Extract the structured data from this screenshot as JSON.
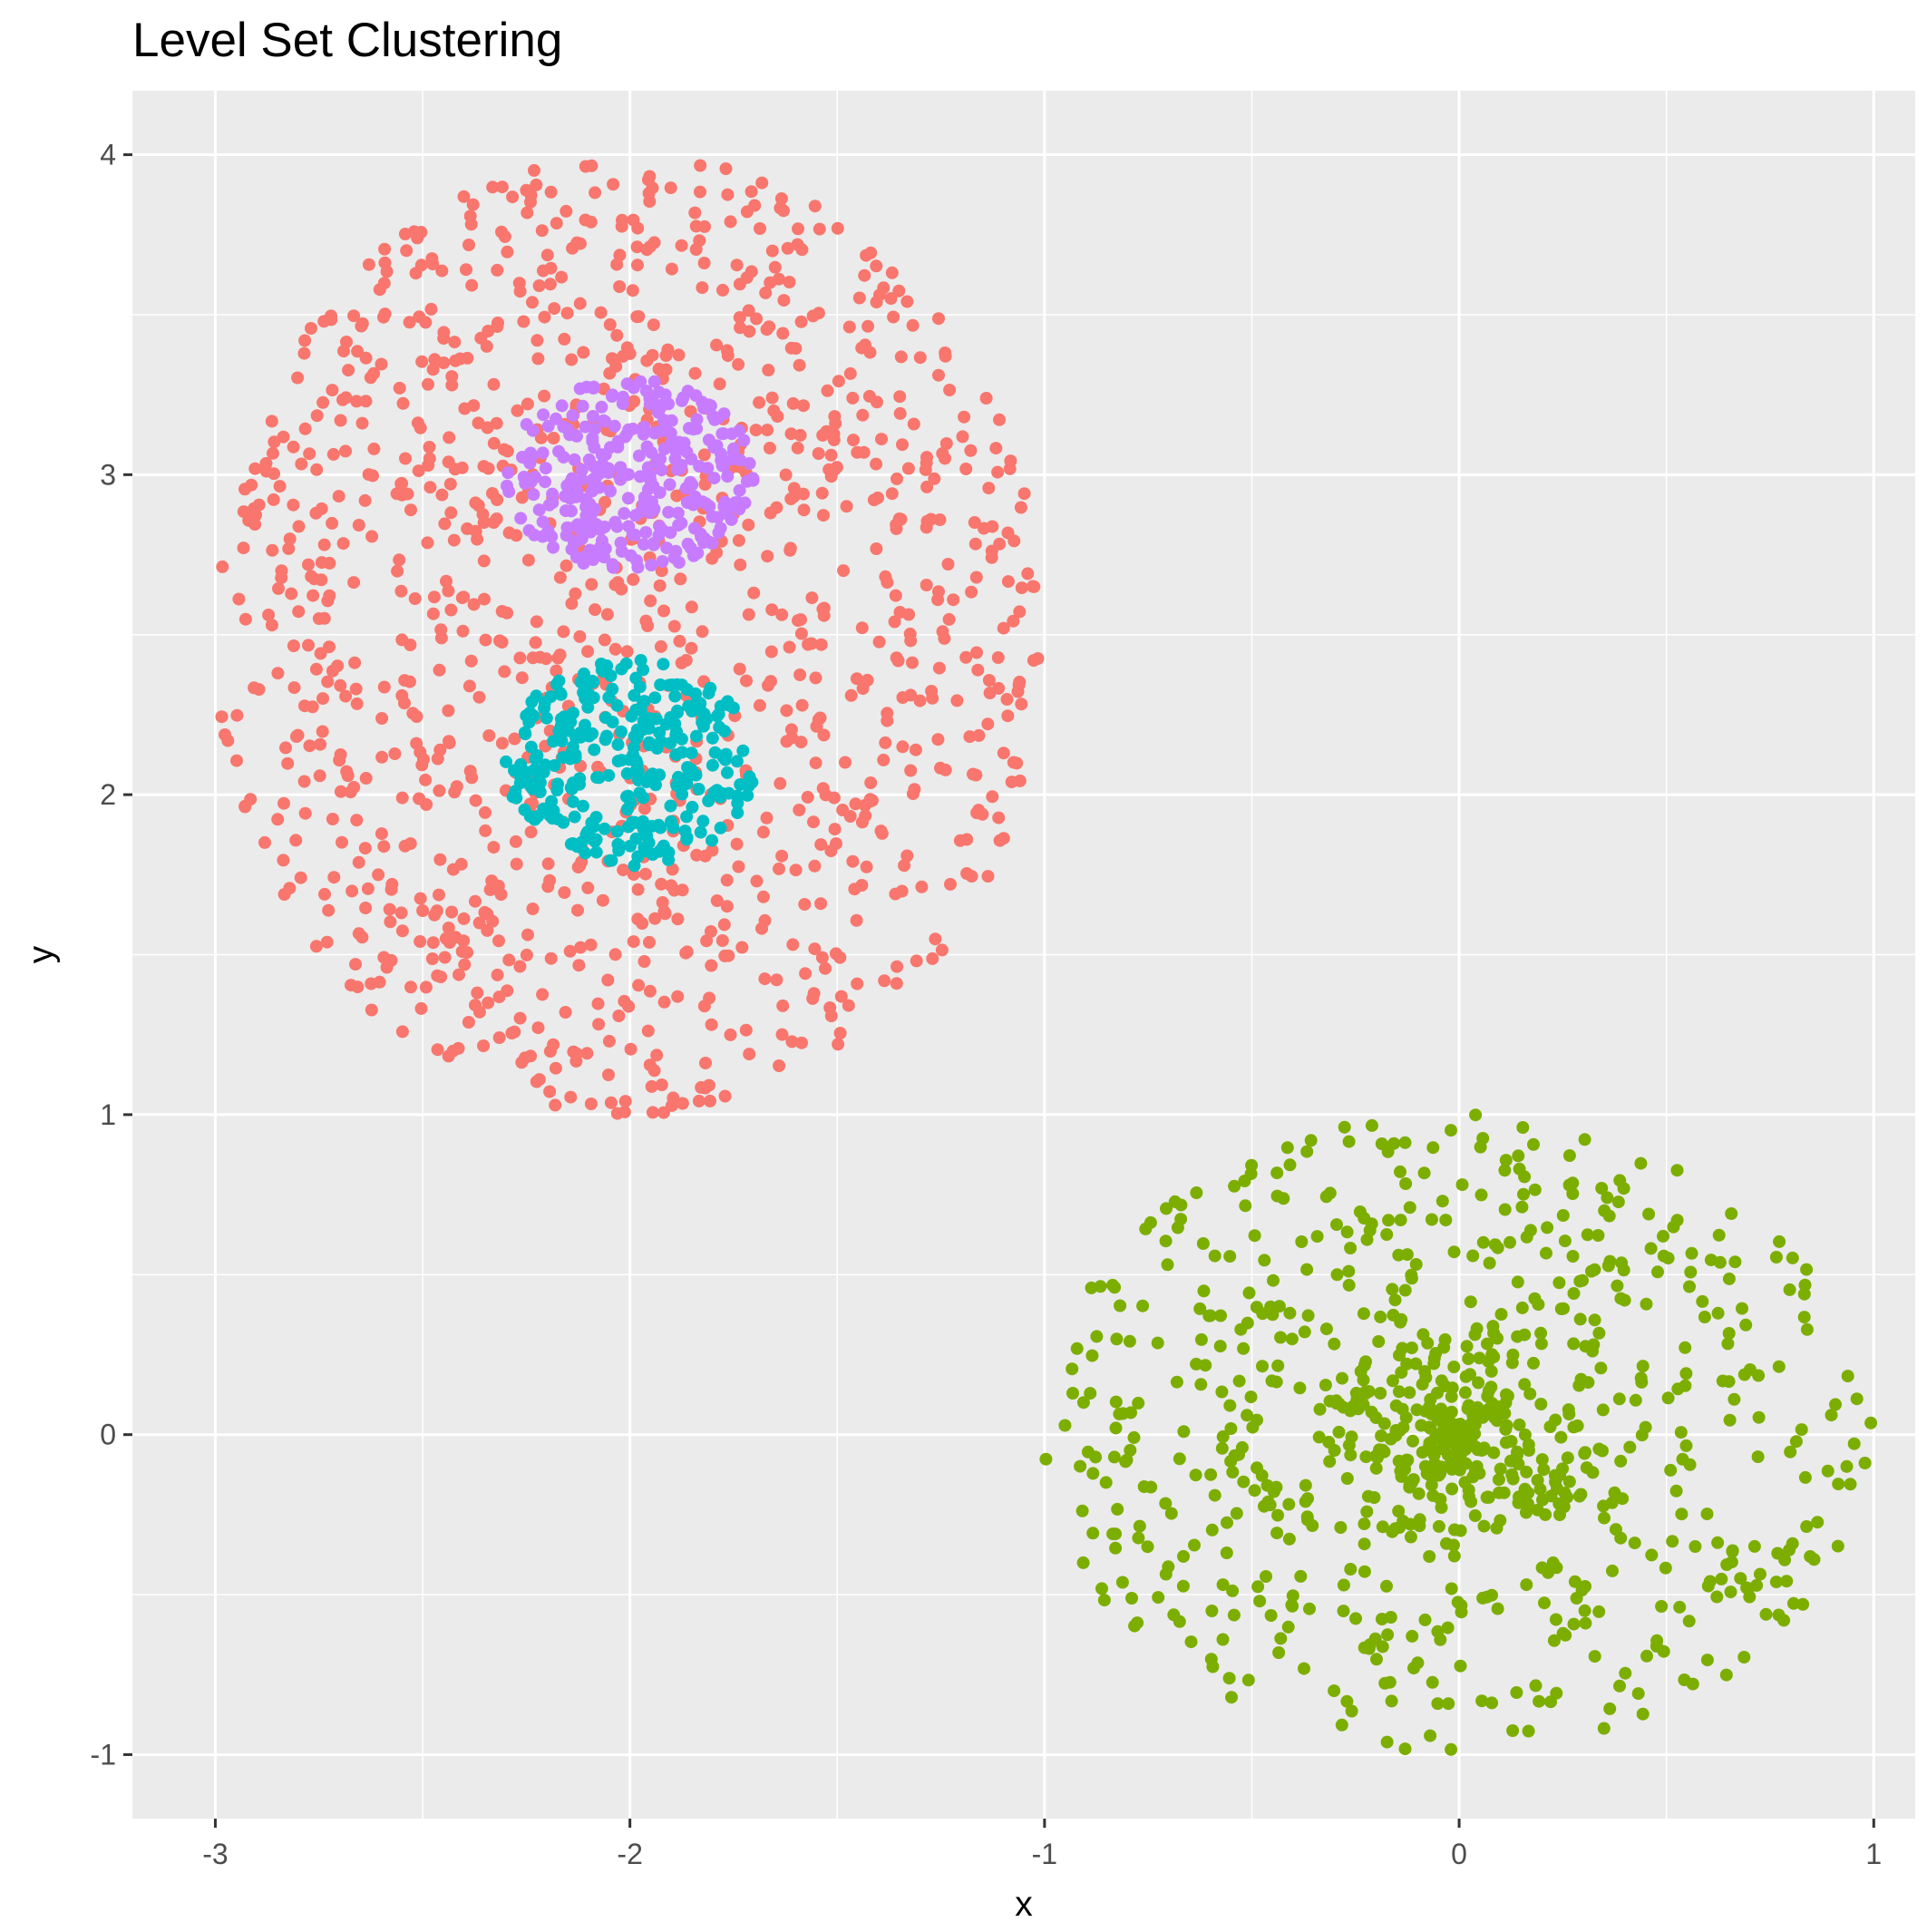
{
  "chart_data": {
    "type": "scatter",
    "title": "Level Set Clustering",
    "xlabel": "x",
    "ylabel": "y",
    "xlim": [
      -3.2,
      1.1
    ],
    "ylim": [
      -1.2,
      4.2
    ],
    "x_ticks": [
      -3,
      -2,
      -1,
      0,
      1
    ],
    "y_ticks": [
      -1,
      0,
      1,
      2,
      3,
      4
    ],
    "x_tick_labels": [
      "-3",
      "-2",
      "-1",
      "0",
      "1"
    ],
    "y_tick_labels": [
      "-1",
      "0",
      "1",
      "2",
      "3",
      "4"
    ],
    "grid": true,
    "legend": "none",
    "panel_background": "#EBEBEB",
    "grid_color": "#FFFFFF",
    "series": [
      {
        "color": "#F8766D",
        "shape": "filled-disk",
        "center": [
          -2,
          2.5
        ],
        "x_range": [
          -3.0,
          -1.0
        ],
        "y_range": [
          1.0,
          4.0
        ],
        "approx_count": 1200
      },
      {
        "color": "#7CAE00",
        "shape": "filled-disk",
        "center": [
          0,
          0
        ],
        "x_range": [
          -1.0,
          1.0
        ],
        "y_range": [
          -1.0,
          1.0
        ],
        "approx_count": 900
      },
      {
        "color": "#00BFC4",
        "shape": "filled-disk",
        "center": [
          -2,
          2.1
        ],
        "x_range": [
          -2.3,
          -1.7
        ],
        "y_range": [
          1.8,
          2.45
        ],
        "approx_count": 300
      },
      {
        "color": "#C77CFF",
        "shape": "filled-disk",
        "center": [
          -2,
          3.0
        ],
        "x_range": [
          -2.3,
          -1.7
        ],
        "y_range": [
          2.65,
          3.25
        ],
        "approx_count": 300
      }
    ]
  }
}
